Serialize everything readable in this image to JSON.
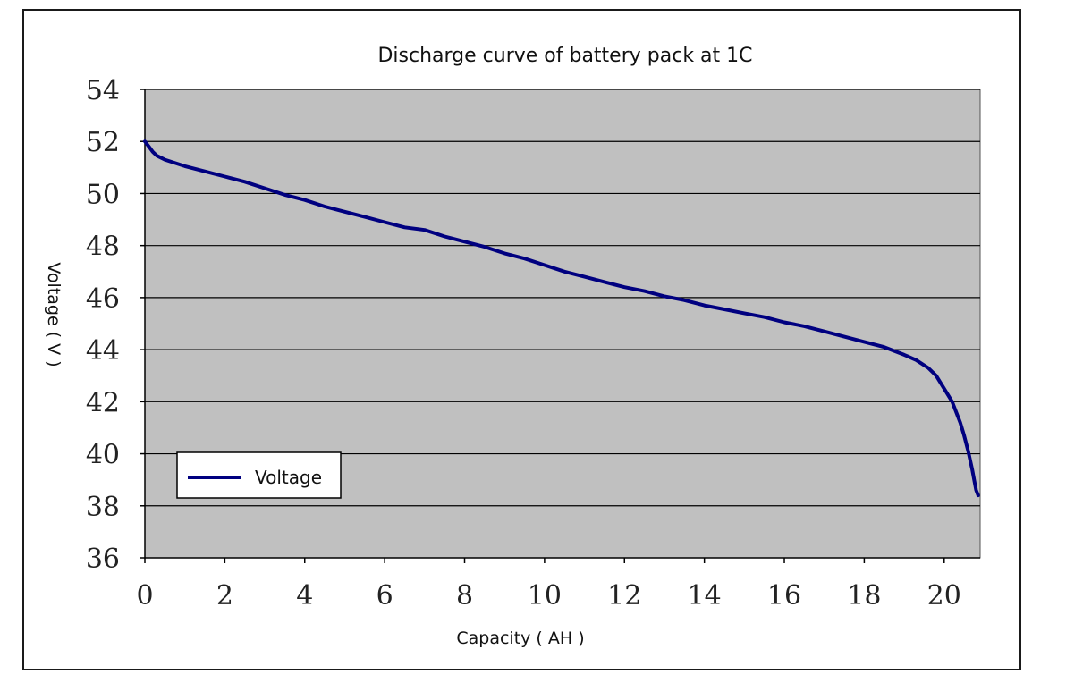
{
  "chart_data": {
    "type": "line",
    "title": "Discharge curve of battery pack at 1C",
    "xlabel": "Capacity ( AH )",
    "ylabel": "Voltage ( V )",
    "xlim": [
      0,
      20.9
    ],
    "ylim": [
      36,
      54
    ],
    "xticks": [
      0,
      2,
      4,
      6,
      8,
      10,
      12,
      14,
      16,
      18,
      20
    ],
    "yticks": [
      36,
      38,
      40,
      42,
      44,
      46,
      48,
      50,
      52,
      54
    ],
    "grid": "horizontal",
    "legend": "bottom-left",
    "plot_bg": "#c0c0c0",
    "series": [
      {
        "name": "Voltage",
        "color": "#000080",
        "x": [
          0,
          0.1,
          0.2,
          0.3,
          0.5,
          0.8,
          1.0,
          1.5,
          2.0,
          2.5,
          3.0,
          3.5,
          4.0,
          4.5,
          5.0,
          5.5,
          6.0,
          6.5,
          7.0,
          7.5,
          8.0,
          8.5,
          9.0,
          9.5,
          10.0,
          10.5,
          11.0,
          11.5,
          12.0,
          12.5,
          13.0,
          13.5,
          14.0,
          14.5,
          15.0,
          15.5,
          16.0,
          16.5,
          17.0,
          17.5,
          18.0,
          18.5,
          19.0,
          19.3,
          19.6,
          19.8,
          20.0,
          20.2,
          20.4,
          20.5,
          20.6,
          20.7,
          20.75,
          20.8,
          20.85
        ],
        "y": [
          52.0,
          51.8,
          51.6,
          51.45,
          51.3,
          51.15,
          51.05,
          50.85,
          50.65,
          50.45,
          50.2,
          49.95,
          49.75,
          49.5,
          49.3,
          49.1,
          48.9,
          48.7,
          48.6,
          48.35,
          48.15,
          47.95,
          47.7,
          47.5,
          47.25,
          47.0,
          46.8,
          46.6,
          46.4,
          46.25,
          46.05,
          45.9,
          45.7,
          45.55,
          45.4,
          45.25,
          45.05,
          44.9,
          44.7,
          44.5,
          44.3,
          44.1,
          43.8,
          43.6,
          43.3,
          43.0,
          42.5,
          42.0,
          41.2,
          40.7,
          40.1,
          39.4,
          39.0,
          38.6,
          38.4
        ]
      }
    ]
  }
}
